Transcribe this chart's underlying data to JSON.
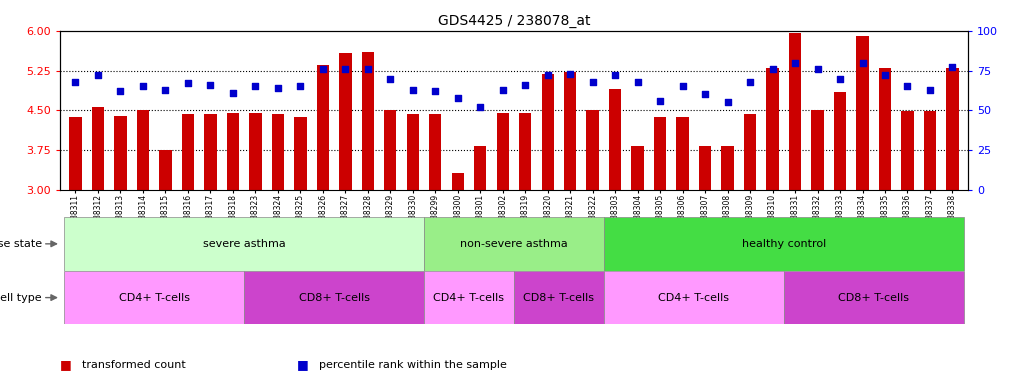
{
  "title": "GDS4425 / 238078_at",
  "samples": [
    "GSM788311",
    "GSM788312",
    "GSM788313",
    "GSM788314",
    "GSM788315",
    "GSM788316",
    "GSM788317",
    "GSM788318",
    "GSM788323",
    "GSM788324",
    "GSM788325",
    "GSM788326",
    "GSM788327",
    "GSM788328",
    "GSM788329",
    "GSM788330",
    "GSM788299",
    "GSM788300",
    "GSM788301",
    "GSM788302",
    "GSM788319",
    "GSM788320",
    "GSM788321",
    "GSM788322",
    "GSM788303",
    "GSM788304",
    "GSM788305",
    "GSM788306",
    "GSM788307",
    "GSM788308",
    "GSM788309",
    "GSM788310",
    "GSM788331",
    "GSM788332",
    "GSM788333",
    "GSM788334",
    "GSM788335",
    "GSM788336",
    "GSM788337",
    "GSM788338"
  ],
  "bar_values": [
    4.38,
    4.56,
    4.4,
    4.5,
    3.75,
    4.43,
    4.43,
    4.46,
    4.46,
    4.43,
    4.38,
    5.35,
    5.58,
    5.6,
    4.5,
    4.43,
    4.43,
    3.33,
    3.83,
    4.46,
    4.46,
    5.18,
    5.22,
    4.5,
    4.9,
    3.83,
    4.37,
    4.37,
    3.83,
    3.83,
    4.43,
    5.3,
    5.95,
    4.5,
    4.85,
    5.9,
    5.3,
    4.48,
    4.49,
    5.3
  ],
  "dot_values": [
    68,
    72,
    62,
    65,
    63,
    67,
    66,
    61,
    65,
    64,
    65,
    76,
    76,
    76,
    70,
    63,
    62,
    58,
    52,
    63,
    66,
    72,
    73,
    68,
    72,
    68,
    56,
    65,
    60,
    55,
    68,
    76,
    80,
    76,
    70,
    80,
    72,
    65,
    63,
    77
  ],
  "ylim_left": [
    3.0,
    6.0
  ],
  "ylim_right": [
    0,
    100
  ],
  "yticks_left": [
    3.0,
    3.75,
    4.5,
    5.25,
    6.0
  ],
  "yticks_right": [
    0,
    25,
    50,
    75,
    100
  ],
  "bar_color": "#cc0000",
  "dot_color": "#0000cc",
  "disease_state_groups": [
    {
      "label": "severe asthma",
      "start": 0,
      "end": 15,
      "color": "#ccffcc"
    },
    {
      "label": "non-severe asthma",
      "start": 16,
      "end": 23,
      "color": "#99ee88"
    },
    {
      "label": "healthy control",
      "start": 24,
      "end": 39,
      "color": "#44dd44"
    }
  ],
  "cell_type_groups": [
    {
      "label": "CD4+ T-cells",
      "start": 0,
      "end": 7,
      "color": "#ff99ff"
    },
    {
      "label": "CD8+ T-cells",
      "start": 8,
      "end": 15,
      "color": "#cc44cc"
    },
    {
      "label": "CD4+ T-cells",
      "start": 16,
      "end": 19,
      "color": "#ff99ff"
    },
    {
      "label": "CD8+ T-cells",
      "start": 20,
      "end": 23,
      "color": "#cc44cc"
    },
    {
      "label": "CD4+ T-cells",
      "start": 24,
      "end": 31,
      "color": "#ff99ff"
    },
    {
      "label": "CD8+ T-cells",
      "start": 32,
      "end": 39,
      "color": "#cc44cc"
    }
  ],
  "legend_items": [
    {
      "label": "transformed count",
      "color": "#cc0000"
    },
    {
      "label": "percentile rank within the sample",
      "color": "#0000cc"
    }
  ],
  "hlines": [
    3.75,
    4.5,
    5.25
  ]
}
